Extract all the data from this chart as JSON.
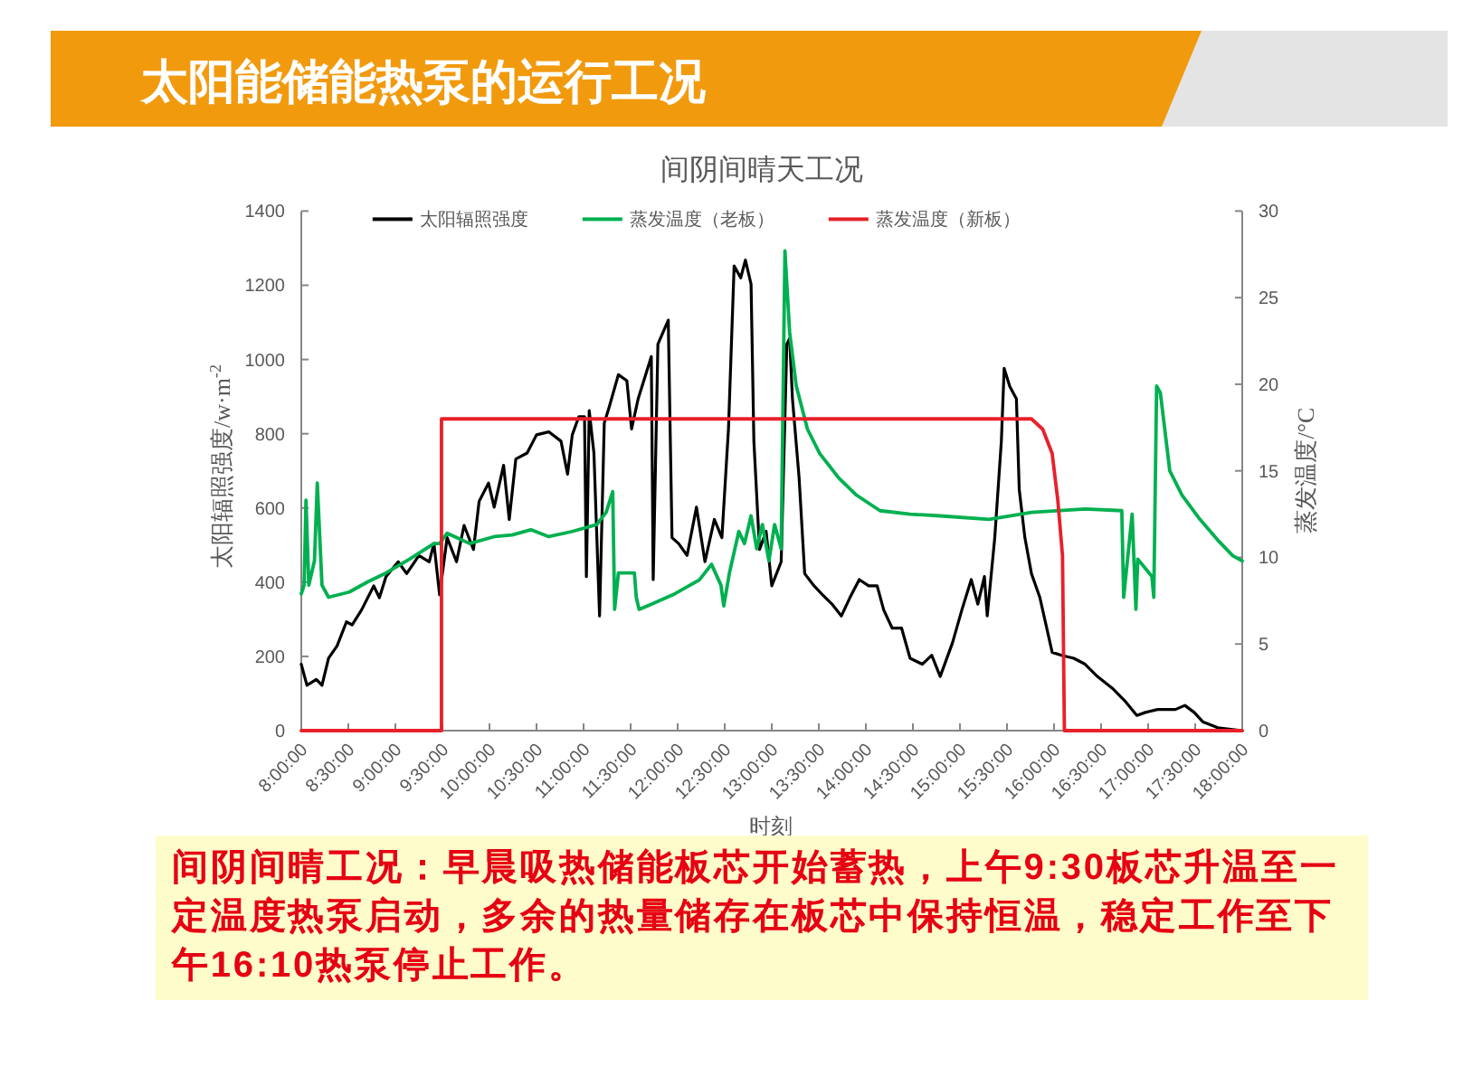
{
  "chart_data": {
    "type": "line",
    "title": "太阳能储能热泵的运行工况",
    "subtitle": "间阴间晴天工况",
    "xlabel": "时刻",
    "ylabel": "太阳辐照强度/w·m$^{-2}$",
    "y2label": "蒸发温度/°C",
    "annotations": [
      "间阴间晴工况：早晨吸热储能板芯开始蓄热，上午9:30板芯升温至一定温度热泵启动，多余的热量储存在板芯中保持恒温，稳定工作至下午16:10热泵停止工作。"
    ],
    "xlim": [
      8,
      18
    ],
    "xticks": [
      {
        "value": 8,
        "label": "8:00:00"
      },
      {
        "value": 8.5,
        "label": "8:30:00"
      },
      {
        "value": 9,
        "label": "9:00:00"
      },
      {
        "value": 9.5,
        "label": "9:30:00"
      },
      {
        "value": 10,
        "label": "10:00:00"
      },
      {
        "value": 10.5,
        "label": "10:30:00"
      },
      {
        "value": 11,
        "label": "11:00:00"
      },
      {
        "value": 11.5,
        "label": "11:30:00"
      },
      {
        "value": 12,
        "label": "12:00:00"
      },
      {
        "value": 12.5,
        "label": "12:30:00"
      },
      {
        "value": 13,
        "label": "13:00:00"
      },
      {
        "value": 13.5,
        "label": "13:30:00"
      },
      {
        "value": 14,
        "label": "14:00:00"
      },
      {
        "value": 14.5,
        "label": "14:30:00"
      },
      {
        "value": 15,
        "label": "15:00:00"
      },
      {
        "value": 15.5,
        "label": "15:30:00"
      },
      {
        "value": 16,
        "label": "16:00:00"
      },
      {
        "value": 16.5,
        "label": "16:30:00"
      },
      {
        "value": 17,
        "label": "17:00:00"
      },
      {
        "value": 17.5,
        "label": "17:30:00"
      },
      {
        "value": 18,
        "label": "18:00:00"
      }
    ],
    "ylim": [
      0,
      1400
    ],
    "yticks": [
      0,
      200,
      400,
      600,
      800,
      1000,
      1200,
      1400
    ],
    "y2lim": [
      0,
      30
    ],
    "y2ticks": [
      0,
      5,
      10,
      15,
      20,
      25,
      30
    ],
    "legend": "top",
    "line_style": "solid",
    "series": [
      {
        "name": "太阳辐照强度",
        "color": "#000000",
        "axis": "y",
        "x": [
          8.0,
          8.06,
          8.16,
          8.22,
          8.29,
          8.38,
          8.48,
          8.54,
          8.64,
          8.77,
          8.83,
          8.9,
          9.03,
          9.12,
          9.25,
          9.36,
          9.41,
          9.47,
          9.55,
          9.65,
          9.73,
          9.83,
          9.89,
          9.99,
          10.05,
          10.15,
          10.21,
          10.28,
          10.4,
          10.5,
          10.63,
          10.76,
          10.83,
          10.88,
          10.95,
          11.01,
          11.03,
          11.06,
          11.11,
          11.17,
          11.22,
          11.27,
          11.37,
          11.46,
          11.51,
          11.58,
          11.65,
          11.72,
          11.74,
          11.79,
          11.9,
          11.94,
          12.01,
          12.1,
          12.2,
          12.29,
          12.39,
          12.47,
          12.54,
          12.6,
          12.67,
          12.72,
          12.78,
          12.81,
          12.87,
          12.94,
          13.0,
          13.1,
          13.16,
          13.19,
          13.22,
          13.29,
          13.35,
          13.45,
          13.54,
          13.64,
          13.74,
          13.83,
          13.93,
          14.03,
          14.12,
          14.19,
          14.28,
          14.38,
          14.47,
          14.6,
          14.7,
          14.79,
          14.92,
          15.02,
          15.12,
          15.19,
          15.26,
          15.29,
          15.37,
          15.44,
          15.47,
          15.53,
          15.6,
          15.63,
          15.69,
          15.76,
          15.85,
          15.98,
          16.08,
          16.21,
          16.33,
          16.46,
          16.62,
          16.75,
          16.88,
          16.97,
          17.1,
          17.29,
          17.39,
          17.49,
          17.58,
          17.74,
          18.0
        ],
        "values": [
          179,
          122,
          138,
          122,
          195,
          228,
          293,
          285,
          325,
          390,
          358,
          415,
          455,
          423,
          472,
          455,
          504,
          366,
          520,
          455,
          553,
          488,
          618,
          667,
          602,
          715,
          569,
          732,
          748,
          797,
          805,
          780,
          691,
          797,
          846,
          846,
          415,
          862,
          748,
          309,
          829,
          870,
          959,
          943,
          813,
          894,
          951,
          1008,
          407,
          1041,
          1106,
          520,
          504,
          472,
          602,
          455,
          569,
          520,
          813,
          1252,
          1220,
          1268,
          1203,
          780,
          488,
          537,
          390,
          455,
          1041,
          1057,
          894,
          683,
          423,
          390,
          366,
          341,
          309,
          358,
          407,
          390,
          390,
          325,
          276,
          276,
          195,
          179,
          203,
          146,
          236,
          325,
          407,
          341,
          415,
          309,
          520,
          780,
          976,
          927,
          894,
          650,
          520,
          423,
          358,
          211,
          203,
          195,
          179,
          146,
          114,
          81,
          41,
          49,
          57,
          57,
          68,
          49,
          24,
          8,
          0
        ]
      },
      {
        "name": "蒸发温度（老板）",
        "color": "#00b050",
        "axis": "y2",
        "x": [
          8.0,
          8.03,
          8.05,
          8.08,
          8.14,
          8.17,
          8.22,
          8.29,
          8.51,
          8.71,
          8.9,
          9.15,
          9.41,
          9.47,
          9.55,
          9.79,
          10.05,
          10.24,
          10.44,
          10.63,
          10.88,
          11.14,
          11.24,
          11.31,
          11.33,
          11.37,
          11.54,
          11.56,
          11.59,
          11.72,
          11.97,
          12.23,
          12.36,
          12.46,
          12.49,
          12.55,
          12.65,
          12.71,
          12.78,
          12.84,
          12.9,
          12.97,
          13.03,
          13.1,
          13.14,
          13.19,
          13.26,
          13.38,
          13.51,
          13.71,
          13.9,
          14.15,
          14.47,
          14.79,
          15.31,
          15.76,
          16.33,
          16.72,
          16.74,
          16.83,
          16.87,
          16.89,
          17.04,
          17.06,
          17.09,
          17.13,
          17.23,
          17.36,
          17.55,
          17.74,
          17.9,
          18.0
        ],
        "values": [
          7.9,
          8.4,
          13.3,
          8.4,
          9.8,
          14.3,
          8.4,
          7.7,
          8.0,
          8.6,
          9.1,
          9.9,
          10.8,
          10.8,
          11.4,
          10.8,
          11.2,
          11.3,
          11.6,
          11.2,
          11.5,
          11.9,
          12.6,
          13.8,
          7.0,
          9.1,
          9.1,
          7.7,
          7.0,
          7.3,
          7.9,
          8.7,
          9.6,
          8.4,
          7.2,
          9.1,
          11.5,
          10.8,
          12.4,
          10.5,
          11.9,
          9.8,
          11.9,
          10.5,
          27.7,
          23.0,
          19.9,
          17.4,
          16.0,
          14.6,
          13.6,
          12.7,
          12.5,
          12.4,
          12.2,
          12.6,
          12.8,
          12.7,
          7.7,
          12.5,
          7.0,
          9.9,
          8.9,
          7.7,
          19.9,
          19.5,
          15.0,
          13.6,
          12.2,
          11.0,
          10.1,
          9.8
        ]
      },
      {
        "name": "蒸发温度（新板）",
        "color": "#e8202a",
        "axis": "y2",
        "x": [
          8.0,
          9.49,
          9.49,
          15.76,
          15.88,
          15.98,
          16.04,
          16.09,
          16.11,
          18.0
        ],
        "values": [
          0,
          0,
          18,
          18,
          17.4,
          16.0,
          13.3,
          10.1,
          0,
          0
        ]
      }
    ]
  }
}
